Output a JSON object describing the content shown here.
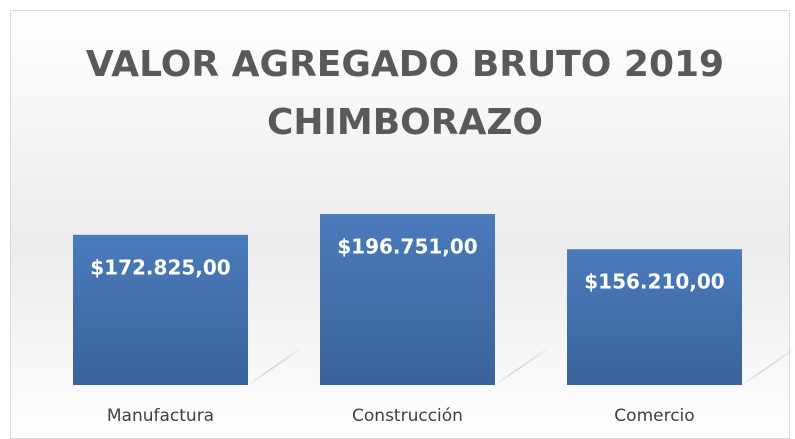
{
  "chart_data": {
    "type": "bar",
    "title": "VALOR AGREGADO BRUTO 2019 CHIMBORAZO",
    "categories": [
      "Manufactura",
      "Construcción",
      "Comercio"
    ],
    "values": [
      172825,
      196751,
      156210
    ],
    "value_labels": [
      "$172.825,00",
      "$196.751,00",
      "$156.210,00"
    ],
    "color": "#4a7bbb"
  }
}
